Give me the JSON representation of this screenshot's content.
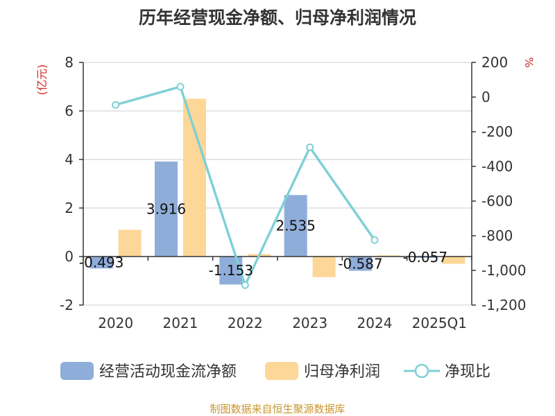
{
  "title": "历年经营现金净额、归母净利润情况",
  "source": "制图数据来自恒生聚源数据库",
  "chart_data": {
    "type": "bar",
    "title": "历年经营现金净额、归母净利润情况",
    "categories": [
      "2020",
      "2021",
      "2022",
      "2023",
      "2024",
      "2025Q1"
    ],
    "left_axis": {
      "unit": "(亿元)",
      "ylim": [
        -2,
        8
      ],
      "ticks": [
        "-2",
        "0",
        "2",
        "4",
        "6",
        "8"
      ]
    },
    "right_axis": {
      "unit": "%",
      "ylim": [
        -1200,
        200
      ],
      "ticks": [
        "-1,200",
        "-1,000",
        "-800",
        "-600",
        "-400",
        "-200",
        "0",
        "200"
      ]
    },
    "series": [
      {
        "name": "经营活动现金流净额",
        "type": "bar",
        "axis": "left",
        "color": "#8fadd9",
        "values": [
          -0.493,
          3.916,
          -1.153,
          2.535,
          -0.587,
          -0.057
        ],
        "labels": [
          "-0.493",
          "3.916",
          "-1.153",
          "2.535",
          "-0.587",
          "-0.057"
        ]
      },
      {
        "name": "归母净利润",
        "type": "bar",
        "axis": "left",
        "color": "#fdd797",
        "values": [
          1.1,
          6.5,
          0.1,
          -0.85,
          0.05,
          -0.3
        ]
      },
      {
        "name": "净现比",
        "type": "line",
        "axis": "right",
        "color": "#7fd0d6",
        "values": [
          -45,
          60,
          -1085,
          -290,
          -825,
          null
        ]
      }
    ],
    "grid": true,
    "legend": "bottom"
  }
}
